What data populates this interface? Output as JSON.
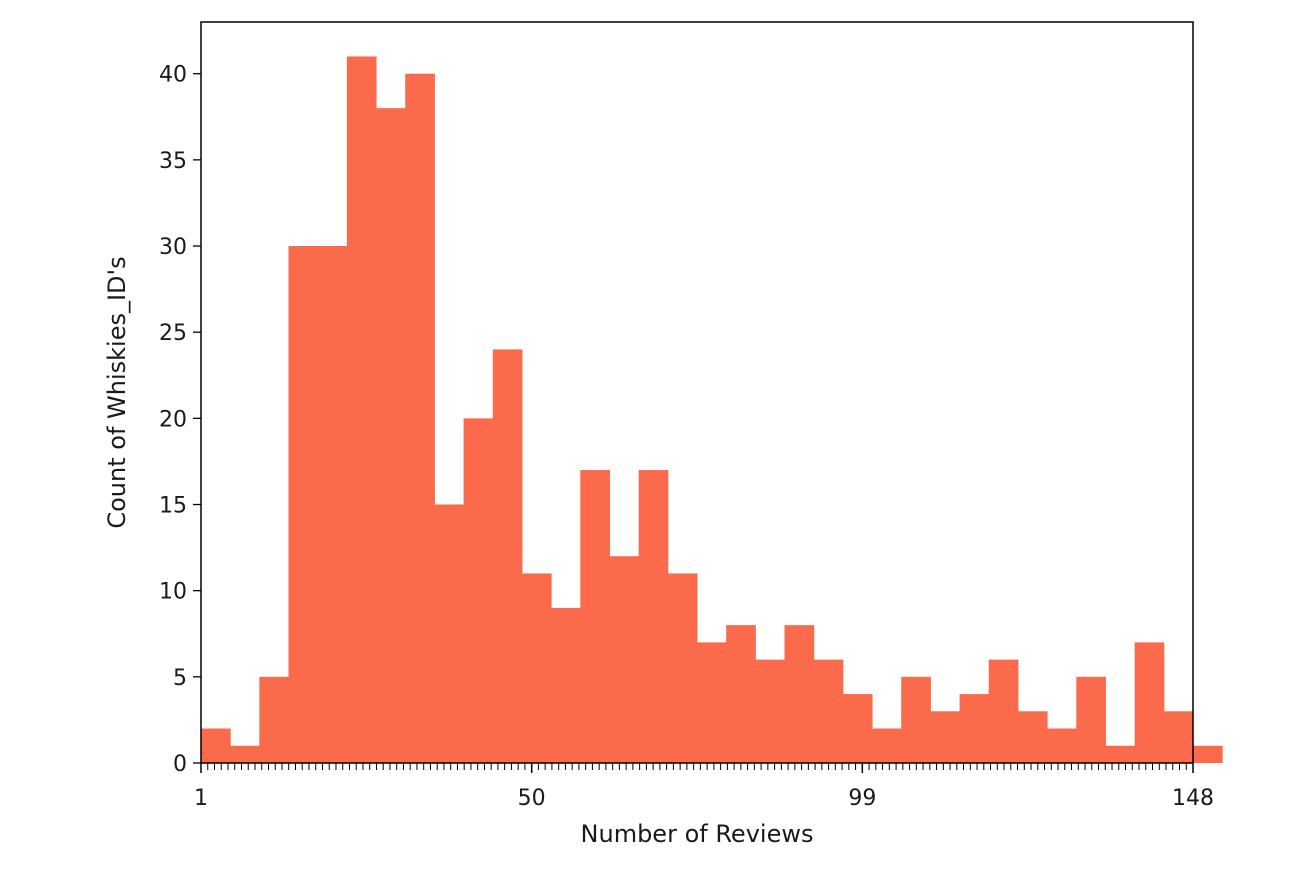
{
  "chart_data": {
    "type": "bar",
    "title": "",
    "xlabel": "Number of Reviews",
    "ylabel": "Count of Whiskies_ID's",
    "xlim": [
      1,
      148
    ],
    "ylim": [
      0,
      43
    ],
    "x_ticks": [
      1,
      50,
      99,
      148
    ],
    "y_ticks": [
      0,
      5,
      10,
      15,
      20,
      25,
      30,
      35,
      40
    ],
    "bin_width": 4.3235,
    "values": [
      2,
      1,
      5,
      30,
      30,
      41,
      38,
      40,
      15,
      20,
      24,
      11,
      9,
      17,
      12,
      17,
      11,
      7,
      8,
      6,
      8,
      6,
      4,
      2,
      5,
      3,
      4,
      6,
      3,
      2,
      5,
      1,
      7,
      3,
      1
    ],
    "grid": false,
    "legend": "none",
    "colors": {
      "bar": "#fa6a4b",
      "axes": "#000000",
      "text": "#1a1a1a"
    }
  }
}
